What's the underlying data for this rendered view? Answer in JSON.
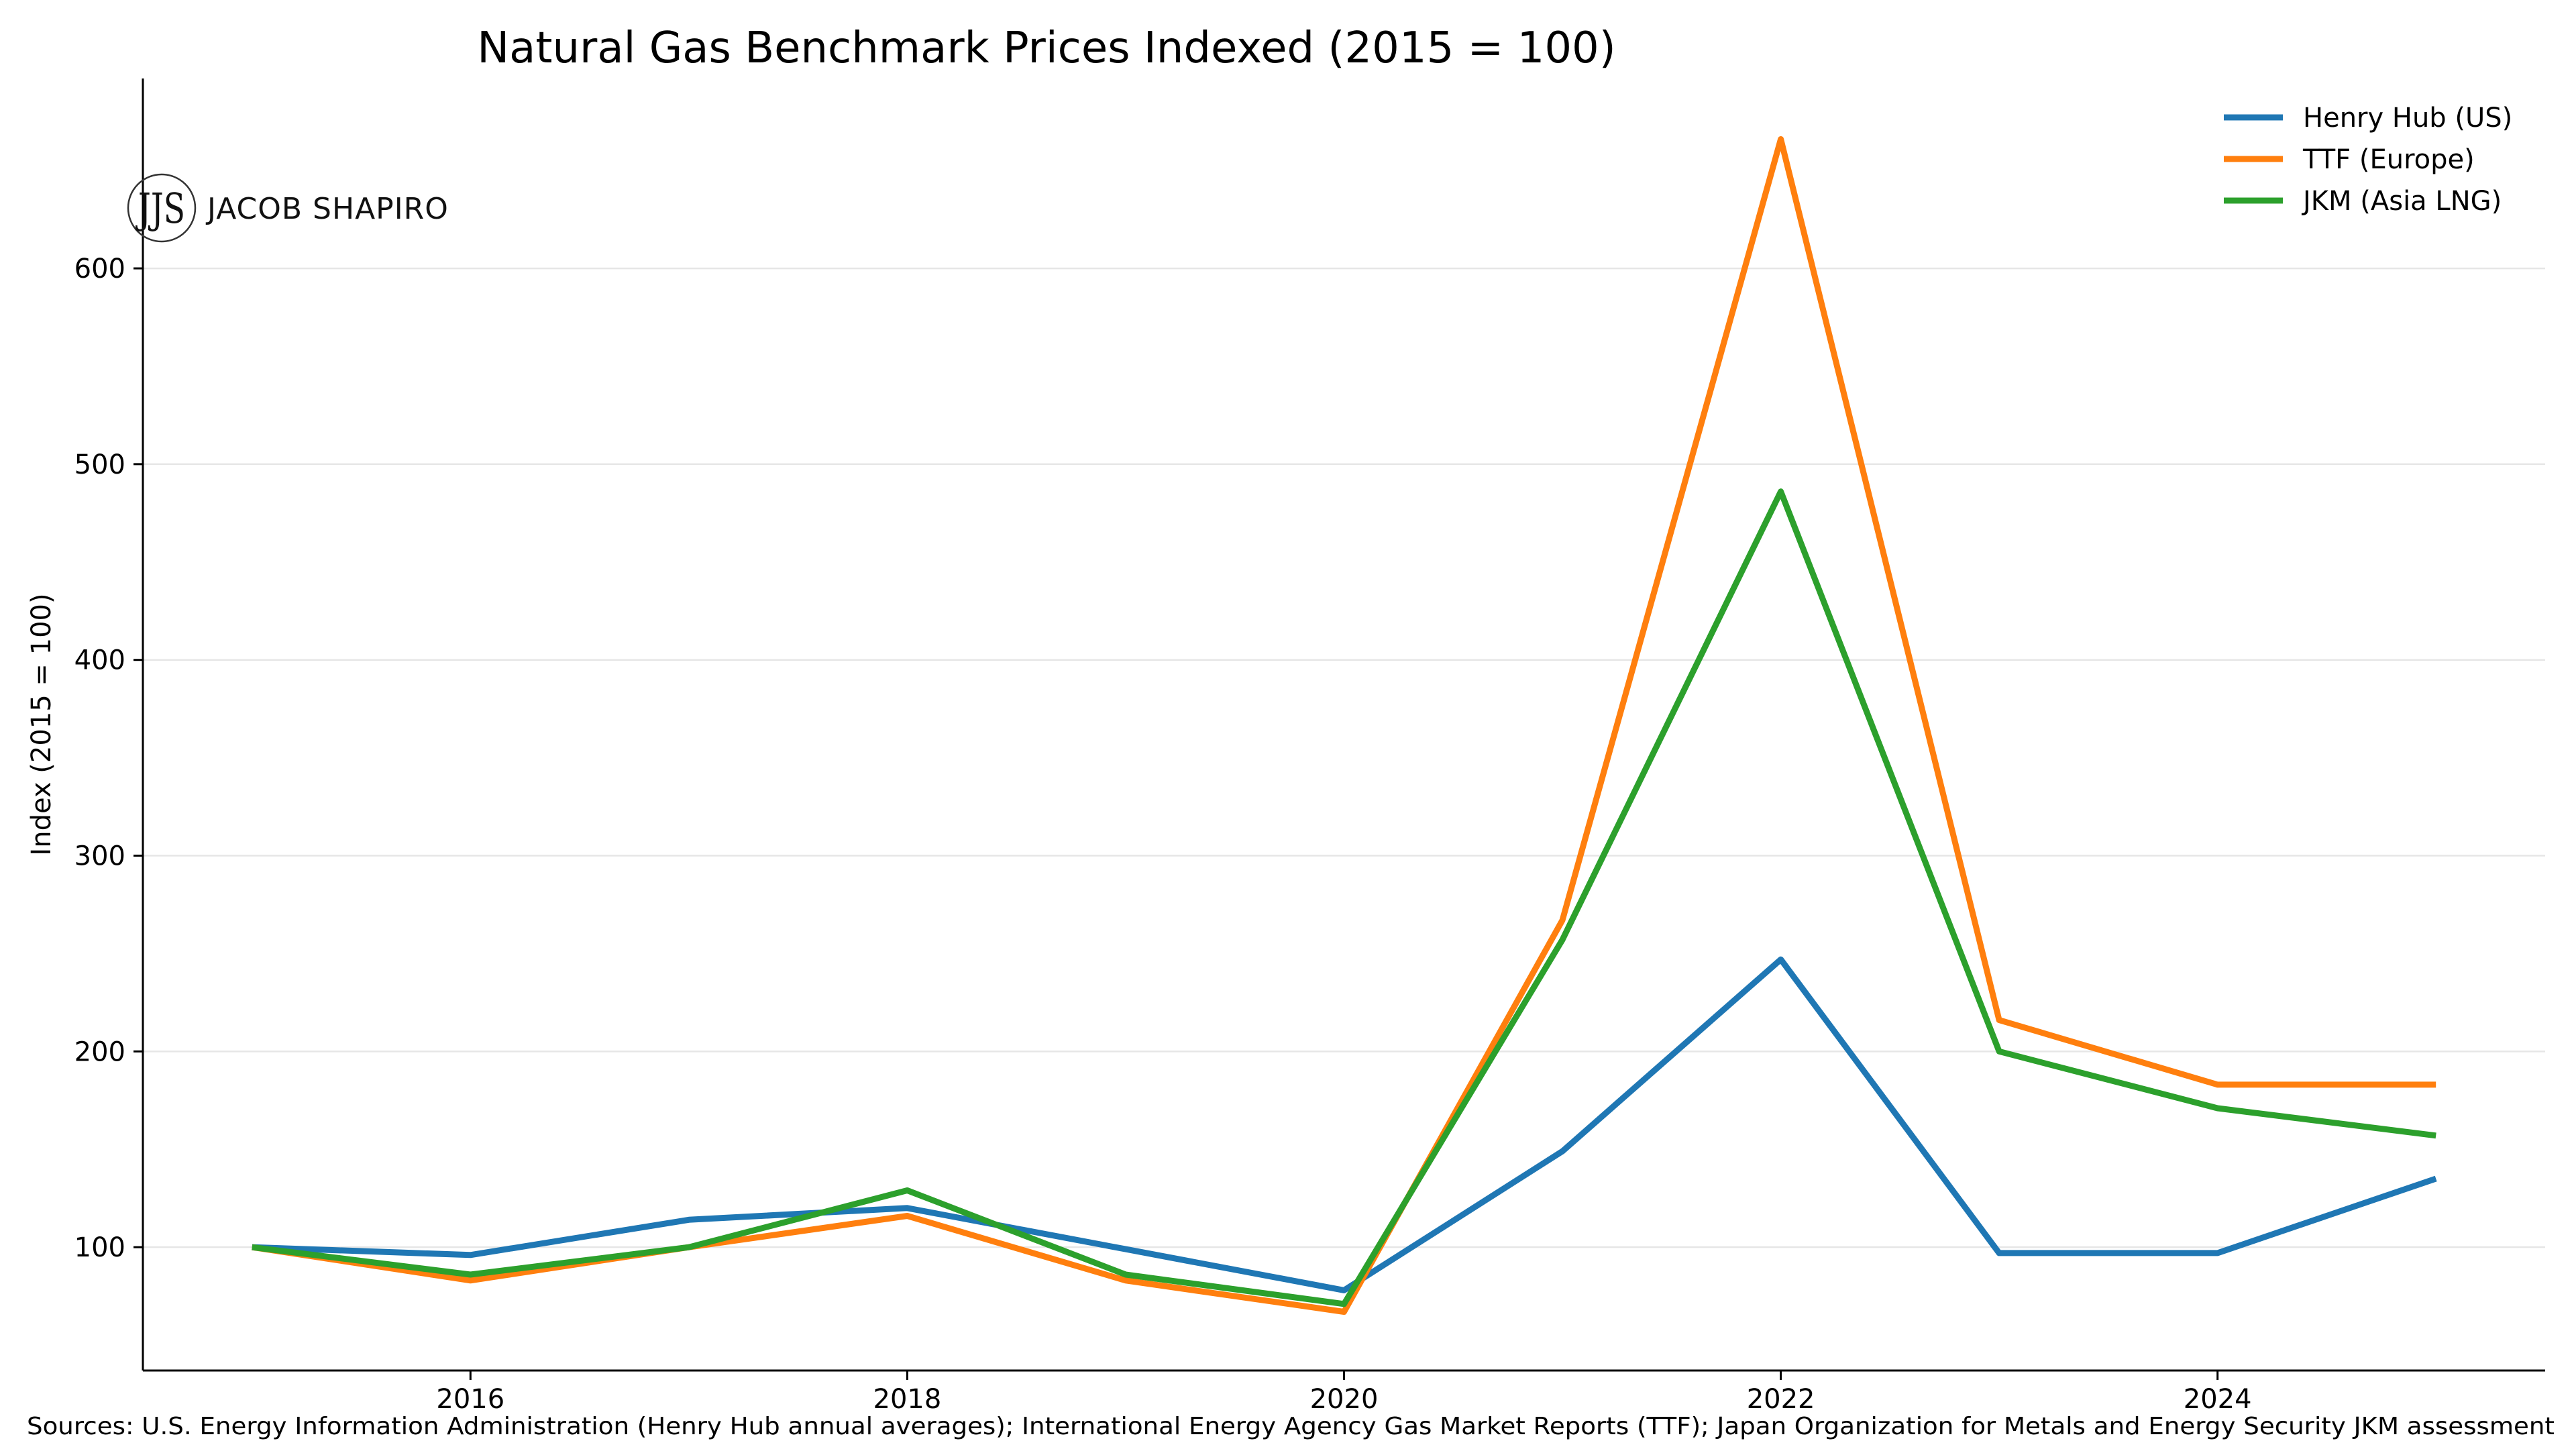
{
  "chart_data": {
    "type": "line",
    "title": "Natural Gas Benchmark Prices Indexed (2015 = 100)",
    "xlabel": "",
    "ylabel": "Index (2015 = 100)",
    "x": [
      2015,
      2016,
      2017,
      2018,
      2019,
      2020,
      2021,
      2022,
      2023,
      2024,
      2025
    ],
    "xlim": [
      2014.5,
      2025.5
    ],
    "ylim": [
      37,
      697
    ],
    "xticks": [
      2016,
      2018,
      2020,
      2022,
      2024
    ],
    "yticks": [
      100,
      200,
      300,
      400,
      500,
      600
    ],
    "grid": "horizontal",
    "legend_position": "top-right",
    "series": [
      {
        "name": "Henry Hub (US)",
        "color": "#1f77b4",
        "values": [
          100,
          96,
          114,
          120,
          99,
          78,
          149,
          247,
          97,
          97,
          135
        ]
      },
      {
        "name": "TTF (Europe)",
        "color": "#ff7f0e",
        "values": [
          100,
          83,
          100,
          116,
          83,
          67,
          267,
          666,
          216,
          183,
          183
        ]
      },
      {
        "name": "JKM (Asia LNG)",
        "color": "#2ca02c",
        "values": [
          100,
          86,
          100,
          129,
          86,
          71,
          257,
          486,
          200,
          171,
          157
        ]
      }
    ]
  },
  "branding": {
    "logo_mark": "JJS",
    "logo_text": "JACOB SHAPIRO"
  },
  "footer": {
    "sources": "Sources: U.S. Energy Information Administration (Henry Hub annual averages); International Energy Agency Gas Market Reports (TTF); Japan Organization for Metals and Energy Security JKM assessment"
  }
}
